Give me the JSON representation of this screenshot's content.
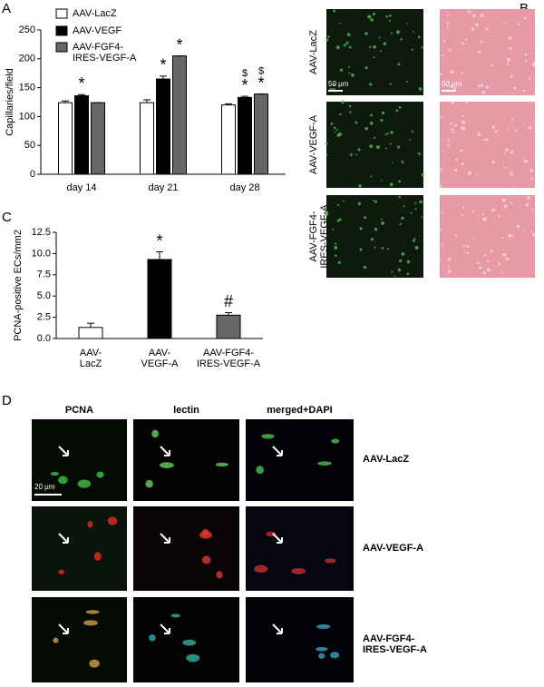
{
  "chart_data": [
    {
      "type": "bar",
      "panel": "A",
      "y_label": "Capillaries/field",
      "categories": [
        "day 14",
        "day 21",
        "day 28"
      ],
      "ylim": [
        0,
        250
      ],
      "yticks": [
        0,
        50,
        100,
        150,
        200,
        250
      ],
      "series": [
        {
          "name": "AAV-LacZ",
          "color": "#ffffff",
          "values": [
            124,
            124,
            120
          ],
          "errors": [
            3,
            5,
            2
          ]
        },
        {
          "name": "AAV-VEGF",
          "color": "#000000",
          "values": [
            136,
            165,
            133
          ],
          "errors": [
            2,
            5,
            2
          ],
          "markers": [
            "*",
            "*",
            "*"
          ],
          "markers_top": [
            null,
            null,
            "$"
          ]
        },
        {
          "name": "AAV-FGF4-\nIRES-VEGF-A",
          "color": "#666666",
          "values": [
            124,
            205,
            139
          ],
          "errors": [
            0,
            0,
            0
          ],
          "markers": [
            null,
            "*",
            "*"
          ],
          "markers_top": [
            null,
            null,
            "$"
          ]
        }
      ]
    },
    {
      "type": "bar",
      "panel": "C",
      "y_label": "PCNA-positive ECs/mm2",
      "categories": [
        "AAV-\nLacZ",
        "AAV-\nVEGF-A",
        "AAV-FGF4-\nIRES-VEGF-A"
      ],
      "values": [
        1.3,
        9.3,
        2.75
      ],
      "errors": [
        0.5,
        0.9,
        0.3
      ],
      "colors": [
        "#ffffff",
        "#000000",
        "#666666"
      ],
      "markers": [
        null,
        "*",
        "#"
      ],
      "ylim": [
        0,
        12.5
      ],
      "yticks": [
        {
          "value": 0,
          "label": "0.0"
        },
        2.5,
        {
          "value": 5,
          "label": "5.0"
        },
        7.5,
        {
          "value": 10,
          "label": "10.0"
        },
        12.5
      ]
    }
  ],
  "panel_b": {
    "panel": "B",
    "row_labels": [
      "AAV-LacZ",
      "AAV-VEGF-A",
      "AAV-FGF4-\nIRES-VEGF-A"
    ],
    "scale_bars": [
      "50 μm",
      "50 μm"
    ]
  },
  "panel_d": {
    "panel": "D",
    "column_labels": [
      "PCNA",
      "lectin",
      "merged+DAPI"
    ],
    "row_labels": [
      "AAV-LacZ",
      "AAV-VEGF-A",
      "AAV-FGF4-\nIRES-VEGF-A"
    ],
    "scale_bar": "20 μm"
  }
}
